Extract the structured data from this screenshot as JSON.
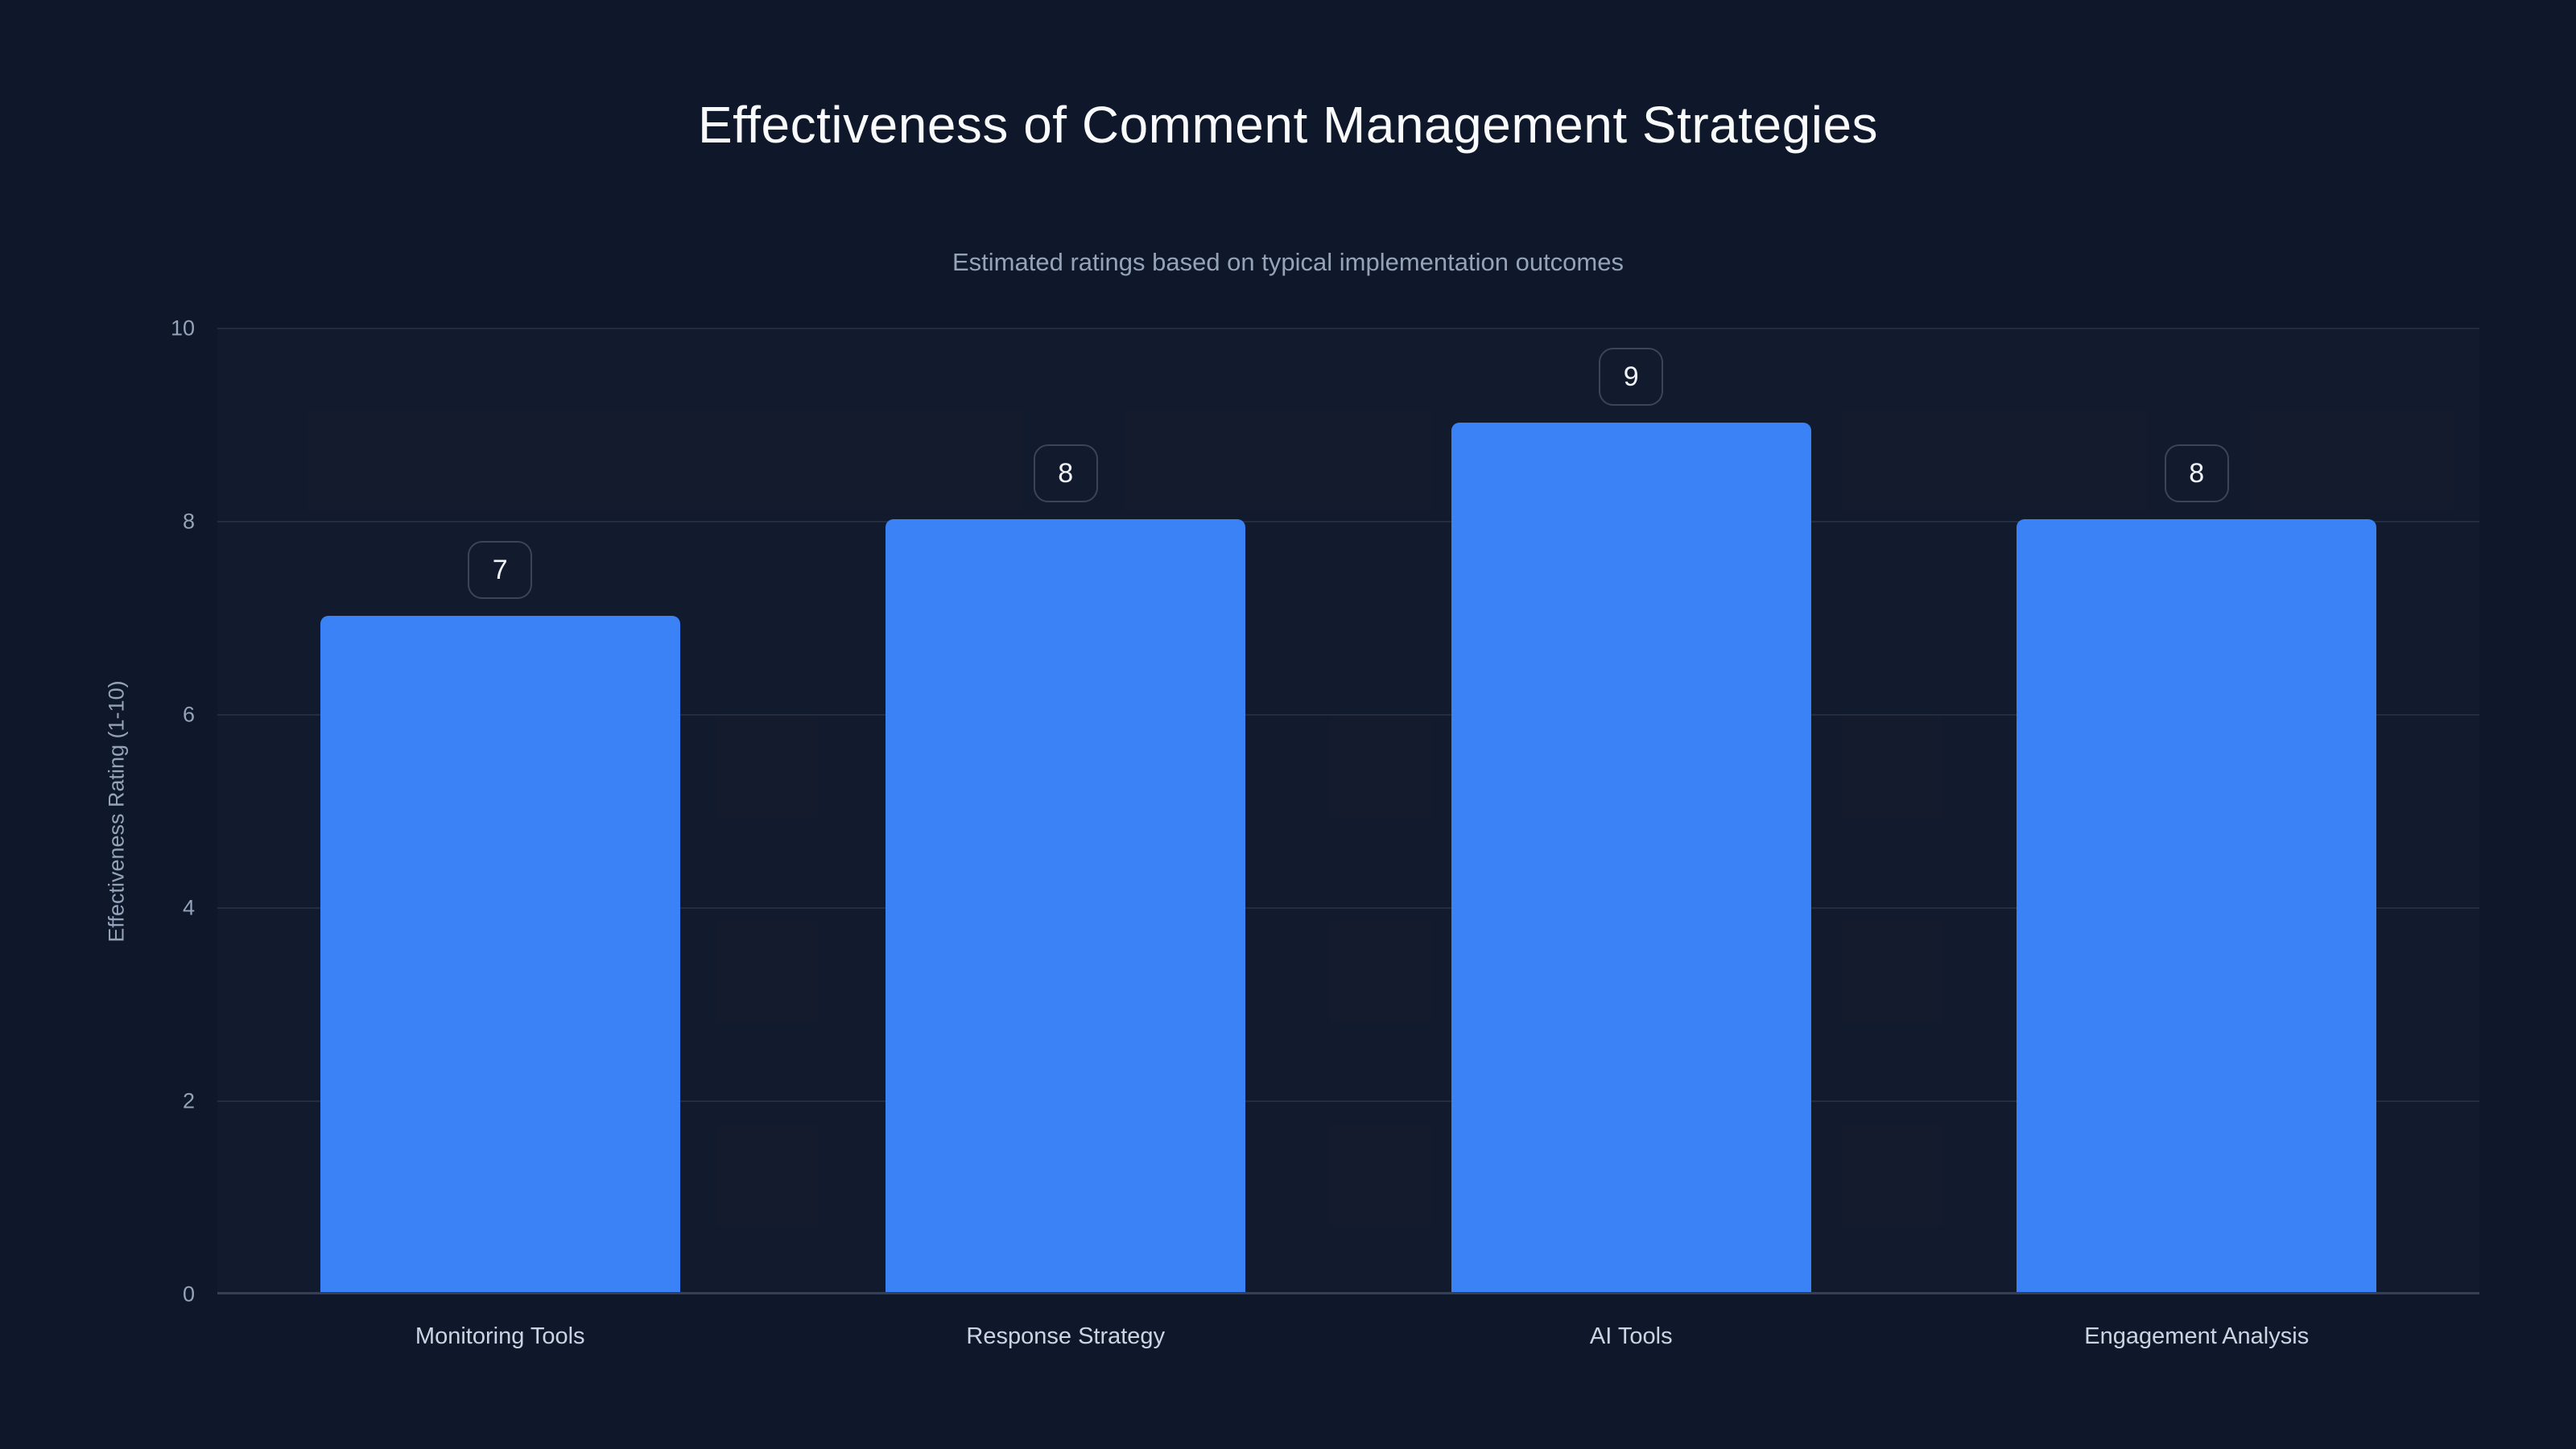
{
  "chart_data": {
    "type": "bar",
    "title": "Effectiveness of Comment Management Strategies",
    "subtitle": "Estimated ratings based on typical implementation outcomes",
    "ylabel": "Effectiveness Rating (1-10)",
    "xlabel": "",
    "categories": [
      "Monitoring Tools",
      "Response Strategy",
      "AI Tools",
      "Engagement Analysis"
    ],
    "values": [
      7,
      8,
      9,
      8
    ],
    "data_labels": [
      "7",
      "8",
      "9",
      "8"
    ],
    "ylim": [
      0,
      10
    ],
    "yticks": [
      0,
      2,
      4,
      6,
      8,
      10
    ],
    "grid": true,
    "legend": false,
    "colors": {
      "background": "#0f172a",
      "bar": "#3b82f6",
      "title_text": "#f8fafc",
      "subtitle_text": "#94a3b8",
      "tick_text": "#94a3b8",
      "category_text": "#cbd5e1",
      "badge_border": "#3b4557",
      "badge_text": "#f1f5f9"
    }
  }
}
